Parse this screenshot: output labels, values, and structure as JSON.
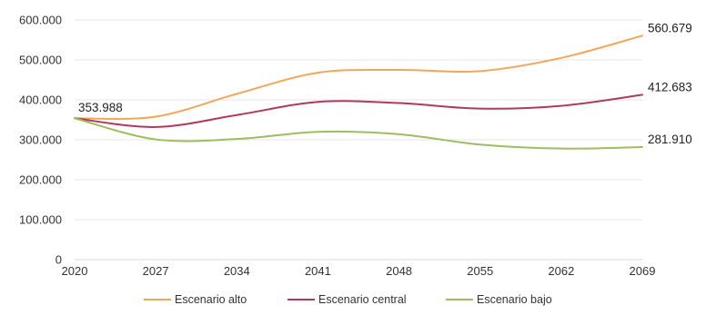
{
  "chart_data": {
    "type": "line",
    "title": "",
    "xlabel": "",
    "ylabel": "",
    "x": [
      2020,
      2027,
      2034,
      2041,
      2048,
      2055,
      2062,
      2069
    ],
    "x_ticks": [
      "2020",
      "2027",
      "2034",
      "2041",
      "2048",
      "2055",
      "2062",
      "2069"
    ],
    "y_ticks": [
      "0",
      "100.000",
      "200.000",
      "300.000",
      "400.000",
      "500.000",
      "600.000"
    ],
    "ylim": [
      0,
      600000
    ],
    "grid": "horizontal",
    "legend_position": "bottom",
    "series": [
      {
        "name": "Escenario alto",
        "color": "#f2a65a",
        "values": [
          353988,
          358000,
          415000,
          468000,
          475000,
          472000,
          505000,
          560679
        ],
        "end_label": "560.679"
      },
      {
        "name": "Escenario central",
        "color": "#b03a5b",
        "values": [
          353988,
          332000,
          362000,
          395000,
          392000,
          378000,
          385000,
          412683
        ],
        "end_label": "412.683"
      },
      {
        "name": "Escenario bajo",
        "color": "#9dbd5e",
        "values": [
          353988,
          301000,
          302000,
          320000,
          314000,
          288000,
          278000,
          281910
        ],
        "end_label": "281.910"
      }
    ],
    "start_label": "353.988"
  }
}
